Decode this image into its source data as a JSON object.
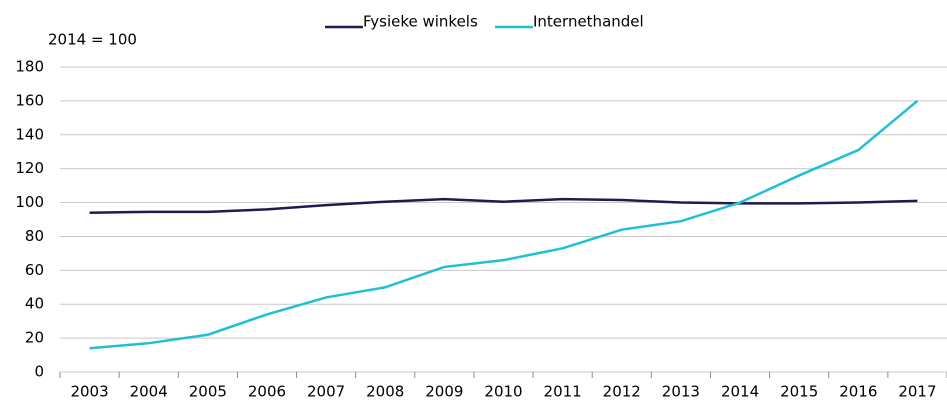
{
  "chart_data": {
    "type": "line",
    "y_label": "2014 = 100",
    "categories": [
      "2003",
      "2004",
      "2005",
      "2006",
      "2007",
      "2008",
      "2009",
      "2010",
      "2011",
      "2012",
      "2013",
      "2014",
      "2015",
      "2016",
      "2017"
    ],
    "series": [
      {
        "name": "Fysieke winkels",
        "color": "#1f1a4f",
        "values": [
          94,
          94.5,
          94.5,
          96,
          98.5,
          100.5,
          102,
          100.5,
          102,
          101.5,
          100,
          99.5,
          99.5,
          100,
          101
        ]
      },
      {
        "name": "Internethandel",
        "color": "#1fc0d6",
        "values": [
          14,
          17,
          22,
          34,
          44,
          50,
          62,
          66,
          73,
          84,
          89,
          100,
          116,
          131,
          160
        ]
      }
    ],
    "ylim": [
      0,
      180
    ],
    "yticks": [
      0,
      20,
      40,
      60,
      80,
      100,
      120,
      140,
      160,
      180
    ],
    "grid": true,
    "legend": "top"
  }
}
